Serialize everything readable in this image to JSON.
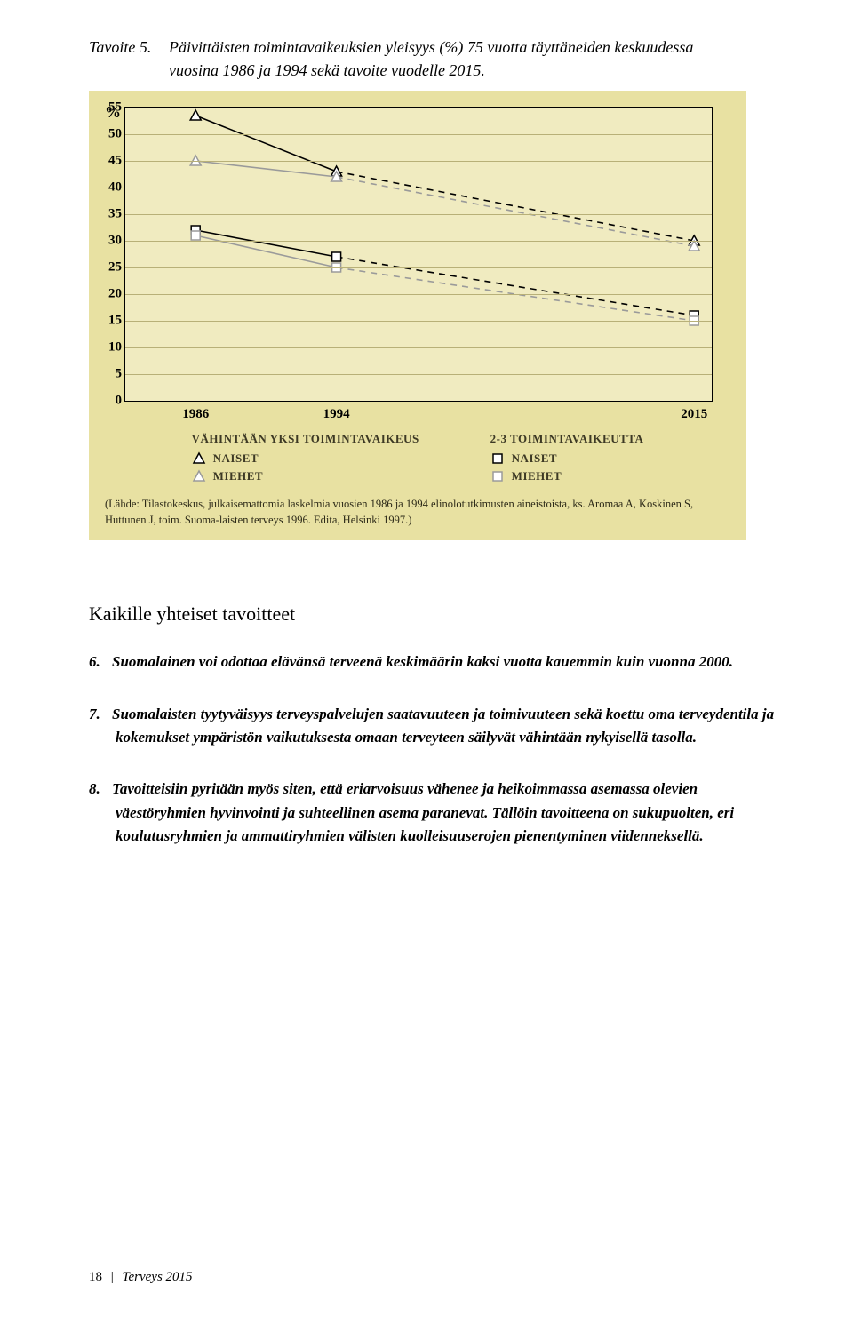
{
  "caption": {
    "prefix": "Tavoite 5.",
    "text": "Päivittäisten toimintavaikeuksien yleisyys (%) 75 vuotta täyttäneiden keskuudessa vuosina 1986 ja 1994 sekä tavoite vuodelle 2015."
  },
  "chart": {
    "type": "line",
    "pct_sign": "%",
    "background_color": "#e8e1a2",
    "plot_bg": "#f0ebc0",
    "grid_color": "#b8b078",
    "ylim": [
      0,
      55
    ],
    "ytick_step": 5,
    "yticks": [
      "55",
      "50",
      "45",
      "40",
      "35",
      "30",
      "25",
      "20",
      "15",
      "10",
      "5",
      "0"
    ],
    "xticks": [
      {
        "label": "1986",
        "xpct": 12
      },
      {
        "label": "1994",
        "xpct": 36
      },
      {
        "label": "2015",
        "xpct": 97
      }
    ],
    "series": [
      {
        "name": "vyn",
        "marker": "triangle",
        "fill": "#ffffff",
        "stroke": "#000000",
        "pts": [
          {
            "xpct": 12,
            "y": 53.5
          },
          {
            "xpct": 36,
            "y": 43
          },
          {
            "xpct": 97,
            "y": 30
          }
        ],
        "seg_dash": [
          "solid",
          "dash"
        ]
      },
      {
        "name": "vym",
        "marker": "triangle",
        "fill": "#ffffff",
        "stroke": "#000000",
        "light": true,
        "pts": [
          {
            "xpct": 12,
            "y": 45
          },
          {
            "xpct": 36,
            "y": 42
          },
          {
            "xpct": 97,
            "y": 29
          }
        ],
        "seg_dash": [
          "solid",
          "dash"
        ]
      },
      {
        "name": "t23n",
        "marker": "square",
        "fill": "#ffffff",
        "stroke": "#000000",
        "pts": [
          {
            "xpct": 12,
            "y": 32
          },
          {
            "xpct": 36,
            "y": 27
          },
          {
            "xpct": 97,
            "y": 16
          }
        ],
        "seg_dash": [
          "solid",
          "dash"
        ]
      },
      {
        "name": "t23m",
        "marker": "square",
        "fill": "#ffffff",
        "stroke": "#000000",
        "light": true,
        "pts": [
          {
            "xpct": 12,
            "y": 31
          },
          {
            "xpct": 36,
            "y": 25
          },
          {
            "xpct": 97,
            "y": 15
          }
        ],
        "seg_dash": [
          "solid",
          "dash"
        ]
      }
    ],
    "legend": {
      "left": {
        "title": "VÄHINTÄÄN YKSI TOIMINTAVAIKEUS",
        "rows": [
          {
            "marker": "triangle",
            "label": "NAISET"
          },
          {
            "marker": "triangle",
            "light": true,
            "label": "MIEHET"
          }
        ]
      },
      "right": {
        "title": "2-3 TOIMINTAVAIKEUTTA",
        "rows": [
          {
            "marker": "square",
            "label": "NAISET"
          },
          {
            "marker": "square",
            "light": true,
            "label": "MIEHET"
          }
        ]
      }
    },
    "source": "(Lähde: Tilastokeskus, julkaisemattomia laskelmia vuosien 1986 ja 1994 elinolotutkimusten aineistoista, ks. Aromaa A, Koskinen S, Huttunen J, toim. Suoma-laisten terveys 1996. Edita, Helsinki 1997.)"
  },
  "section_title": "Kaikille yhteiset tavoitteet",
  "goals": [
    {
      "num": "6.",
      "text": "Suomalainen voi odottaa elävänsä terveenä keskimäärin kaksi vuotta kauemmin kuin vuonna 2000."
    },
    {
      "num": "7.",
      "text": "Suomalaisten tyytyväisyys terveyspalvelujen saatavuuteen ja toimivuuteen sekä koettu oma terveydentila ja kokemukset ympäristön vaikutuksesta omaan terveyteen säilyvät vähintään nykyisellä tasolla."
    },
    {
      "num": "8.",
      "text": "Tavoitteisiin pyritään myös siten, että eriarvoisuus vähenee ja heikoimmassa asemassa olevien väestöryhmien hyvinvointi ja suhteellinen asema paranevat. Tällöin tavoitteena on sukupuolten, eri koulutusryhmien ja ammattiryhmien välisten kuolleisuuserojen pienentyminen viidenneksellä."
    }
  ],
  "footer": {
    "page": "18",
    "sep": "|",
    "doc": "Terveys 2015"
  }
}
